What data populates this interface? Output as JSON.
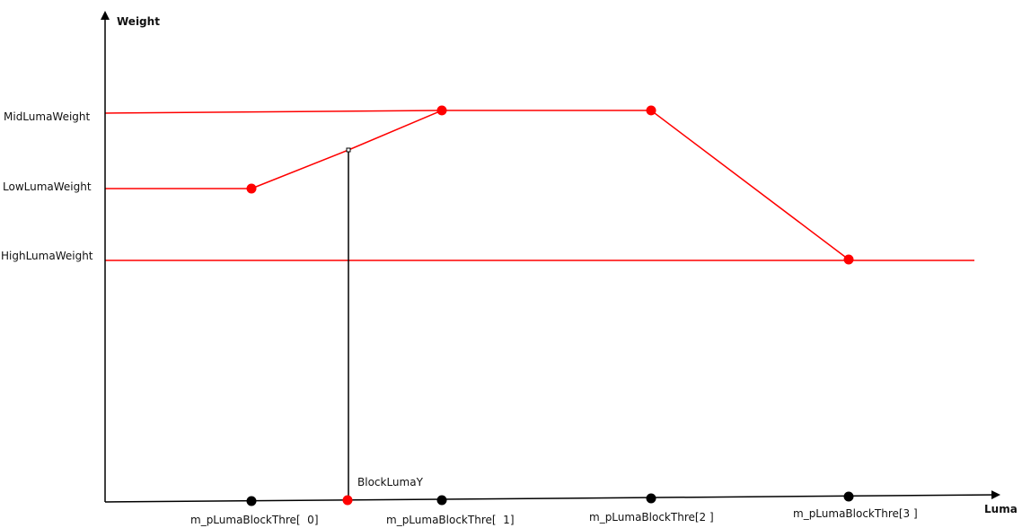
{
  "axes": {
    "y_title": "Weight",
    "x_title": "Luma"
  },
  "y_labels": {
    "mid": "MidLumaWeight",
    "low": "LowLumaWeight",
    "high": "HighLumaWeight"
  },
  "x_labels": {
    "thre0": "m_pLumaBlockThre[  0]",
    "thre1": "m_pLumaBlockThre[  1]",
    "thre2": "m_pLumaBlockThre[2 ]",
    "thre3": "m_pLumaBlockThre[3 ]"
  },
  "marker_label": "BlockLumaY",
  "colors": {
    "curve": "#ff0000",
    "axis": "#000000",
    "guide": "#ff0000"
  }
}
